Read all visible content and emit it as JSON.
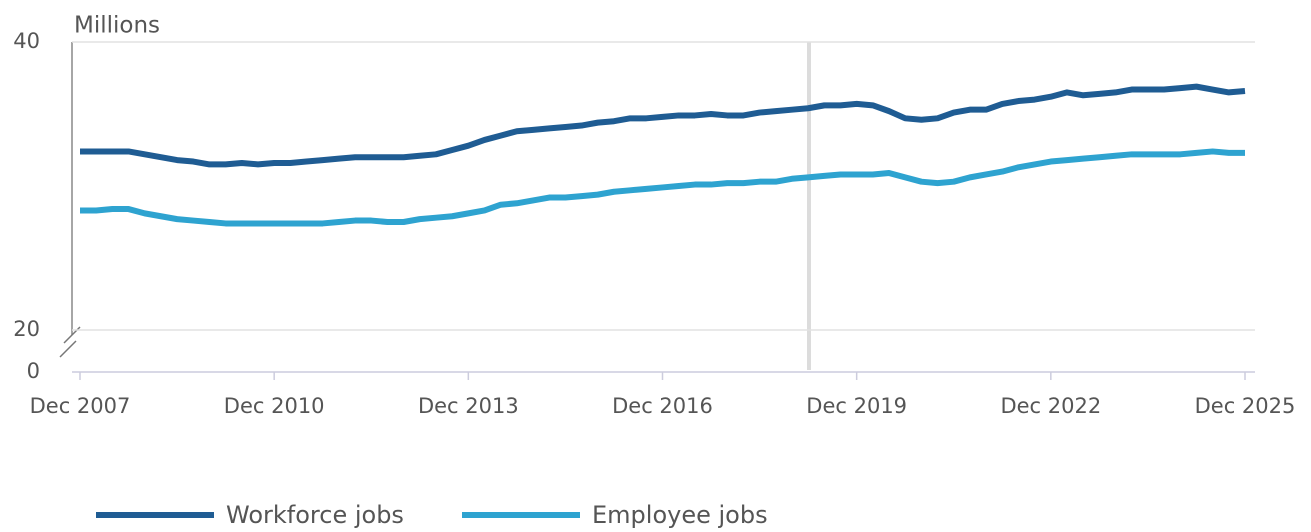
{
  "chart_data": {
    "type": "line",
    "y_label": "Millions",
    "categories": [
      "Dec 2007",
      null,
      null,
      null,
      null,
      null,
      null,
      null,
      null,
      null,
      null,
      null,
      "Dec 2010",
      null,
      null,
      null,
      null,
      null,
      null,
      null,
      null,
      null,
      null,
      null,
      "Dec 2013",
      null,
      null,
      null,
      null,
      null,
      null,
      null,
      null,
      null,
      null,
      null,
      "Dec 2016",
      null,
      null,
      null,
      null,
      null,
      null,
      null,
      null,
      null,
      null,
      null,
      "Dec 2019",
      null,
      null,
      null,
      null,
      null,
      null,
      null,
      null,
      null,
      null,
      null,
      "Dec 2022",
      null,
      null,
      null,
      null,
      null,
      null,
      null,
      null,
      null,
      null,
      null,
      "Dec 2025"
    ],
    "series": [
      {
        "name": "Workforce jobs",
        "color": "#1f5c93",
        "values": [
          32.4,
          32.4,
          32.4,
          32.4,
          32.2,
          32.0,
          31.8,
          31.7,
          31.5,
          31.5,
          31.6,
          31.5,
          31.6,
          31.6,
          31.7,
          31.8,
          31.9,
          32.0,
          32.0,
          32.0,
          32.0,
          32.1,
          32.2,
          32.5,
          32.8,
          33.2,
          33.5,
          33.8,
          33.9,
          34.0,
          34.1,
          34.2,
          34.4,
          34.5,
          34.7,
          34.7,
          34.8,
          34.9,
          34.9,
          35.0,
          34.9,
          34.9,
          35.1,
          35.2,
          35.3,
          35.4,
          35.6,
          35.6,
          35.7,
          35.6,
          35.2,
          34.7,
          34.6,
          34.7,
          35.1,
          35.3,
          35.3,
          35.7,
          35.9,
          36.0,
          36.2,
          36.5,
          36.3,
          36.4,
          36.5,
          36.7,
          36.7,
          36.7,
          36.8,
          36.9,
          36.7,
          36.5,
          36.6
        ]
      },
      {
        "name": "Employee jobs",
        "color": "#2ea3d0",
        "values": [
          28.3,
          28.3,
          28.4,
          28.4,
          28.1,
          27.9,
          27.7,
          27.6,
          27.5,
          27.4,
          27.4,
          27.4,
          27.4,
          27.4,
          27.4,
          27.4,
          27.5,
          27.6,
          27.6,
          27.5,
          27.5,
          27.7,
          27.8,
          27.9,
          28.1,
          28.3,
          28.7,
          28.8,
          29.0,
          29.2,
          29.2,
          29.3,
          29.4,
          29.6,
          29.7,
          29.8,
          29.9,
          30.0,
          30.1,
          30.1,
          30.2,
          30.2,
          30.3,
          30.3,
          30.5,
          30.6,
          30.7,
          30.8,
          30.8,
          30.8,
          30.9,
          30.6,
          30.3,
          30.2,
          30.3,
          30.6,
          30.8,
          31.0,
          31.3,
          31.5,
          31.7,
          31.8,
          31.9,
          32.0,
          32.1,
          32.2,
          32.2,
          32.2,
          32.2,
          32.3,
          32.4,
          32.3,
          32.3
        ]
      }
    ],
    "ylim": [
      20,
      40
    ],
    "yticks": [
      0,
      20,
      40
    ],
    "grid": true
  }
}
